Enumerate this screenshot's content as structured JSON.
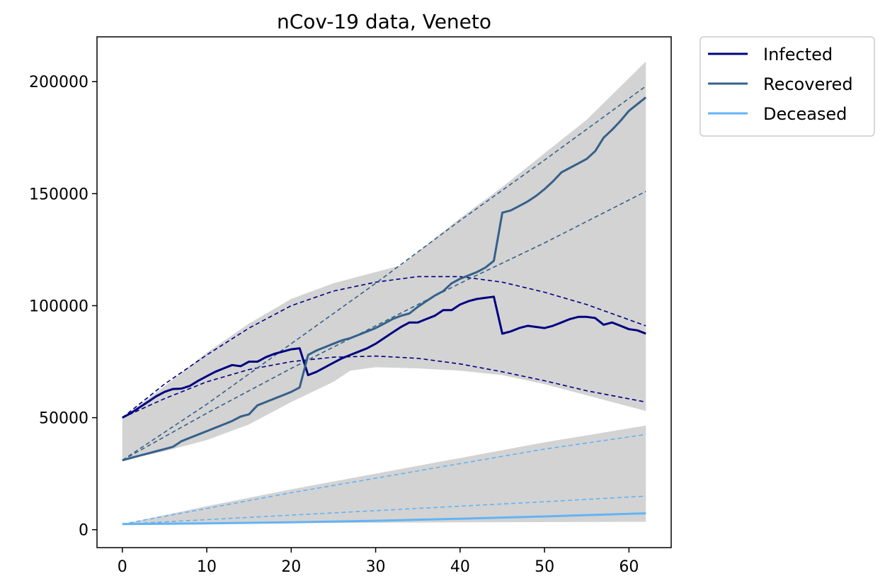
{
  "chart_data": {
    "type": "line",
    "title": "nCov-19 data, Veneto",
    "xlabel": "",
    "ylabel": "",
    "xlim": [
      -3,
      65
    ],
    "ylim": [
      -8000,
      220000
    ],
    "xticks": [
      0,
      10,
      20,
      30,
      40,
      50,
      60
    ],
    "yticks": [
      0,
      50000,
      100000,
      150000,
      200000
    ],
    "grid": false,
    "legend_position": "outside-top-right",
    "series": [
      {
        "name": "Infected",
        "color": "#000080",
        "style": "solid",
        "points": [
          [
            0,
            50000
          ],
          [
            1,
            52000
          ],
          [
            2,
            54500
          ],
          [
            3,
            57000
          ],
          [
            4,
            59500
          ],
          [
            5,
            61500
          ],
          [
            6,
            62800
          ],
          [
            7,
            63000
          ],
          [
            8,
            64200
          ],
          [
            9,
            66500
          ],
          [
            10,
            68500
          ],
          [
            11,
            70500
          ],
          [
            12,
            72000
          ],
          [
            13,
            73500
          ],
          [
            14,
            73000
          ],
          [
            15,
            75000
          ],
          [
            16,
            75000
          ],
          [
            17,
            77000
          ],
          [
            18,
            78500
          ],
          [
            19,
            79500
          ],
          [
            20,
            80500
          ],
          [
            21,
            81000
          ],
          [
            22,
            69000
          ],
          [
            23,
            70500
          ],
          [
            24,
            72500
          ],
          [
            25,
            74500
          ],
          [
            26,
            76500
          ],
          [
            27,
            78000
          ],
          [
            28,
            79500
          ],
          [
            29,
            81000
          ],
          [
            30,
            83000
          ],
          [
            31,
            85500
          ],
          [
            32,
            88000
          ],
          [
            33,
            90500
          ],
          [
            34,
            92500
          ],
          [
            35,
            92500
          ],
          [
            36,
            94000
          ],
          [
            37,
            95500
          ],
          [
            38,
            98000
          ],
          [
            39,
            98000
          ],
          [
            40,
            100500
          ],
          [
            41,
            102000
          ],
          [
            42,
            103000
          ],
          [
            43,
            103500
          ],
          [
            44,
            104000
          ],
          [
            45,
            87500
          ],
          [
            46,
            88500
          ],
          [
            47,
            90000
          ],
          [
            48,
            91000
          ],
          [
            49,
            90500
          ],
          [
            50,
            90000
          ],
          [
            51,
            91000
          ],
          [
            52,
            92500
          ],
          [
            53,
            94000
          ],
          [
            54,
            95000
          ],
          [
            55,
            95000
          ],
          [
            56,
            94500
          ],
          [
            57,
            91500
          ],
          [
            58,
            92500
          ],
          [
            59,
            91000
          ],
          [
            60,
            89500
          ],
          [
            61,
            89000
          ],
          [
            62,
            87500
          ]
        ]
      },
      {
        "name": "Recovered",
        "color": "#35608a",
        "style": "solid",
        "points": [
          [
            0,
            31000
          ],
          [
            1,
            32000
          ],
          [
            2,
            33000
          ],
          [
            3,
            34000
          ],
          [
            4,
            35000
          ],
          [
            5,
            36000
          ],
          [
            6,
            37000
          ],
          [
            7,
            39500
          ],
          [
            8,
            41000
          ],
          [
            9,
            42500
          ],
          [
            10,
            44000
          ],
          [
            11,
            45500
          ],
          [
            12,
            47000
          ],
          [
            13,
            48500
          ],
          [
            14,
            50500
          ],
          [
            15,
            51500
          ],
          [
            16,
            55500
          ],
          [
            17,
            57000
          ],
          [
            18,
            58500
          ],
          [
            19,
            60000
          ],
          [
            20,
            61500
          ],
          [
            21,
            63500
          ],
          [
            22,
            78000
          ],
          [
            23,
            80000
          ],
          [
            24,
            81500
          ],
          [
            25,
            83000
          ],
          [
            26,
            84500
          ],
          [
            27,
            85500
          ],
          [
            28,
            87000
          ],
          [
            29,
            88500
          ],
          [
            30,
            90000
          ],
          [
            31,
            92000
          ],
          [
            32,
            94000
          ],
          [
            33,
            95500
          ],
          [
            34,
            96500
          ],
          [
            35,
            99500
          ],
          [
            36,
            102000
          ],
          [
            37,
            104500
          ],
          [
            38,
            106500
          ],
          [
            39,
            110000
          ],
          [
            40,
            112000
          ],
          [
            41,
            113500
          ],
          [
            42,
            115000
          ],
          [
            43,
            117000
          ],
          [
            44,
            120000
          ],
          [
            45,
            141500
          ],
          [
            46,
            142500
          ],
          [
            47,
            144500
          ],
          [
            48,
            146500
          ],
          [
            49,
            149000
          ],
          [
            50,
            152000
          ],
          [
            51,
            155500
          ],
          [
            52,
            159500
          ],
          [
            53,
            161500
          ],
          [
            54,
            163500
          ],
          [
            55,
            165500
          ],
          [
            56,
            169000
          ],
          [
            57,
            175000
          ],
          [
            58,
            178500
          ],
          [
            59,
            182500
          ],
          [
            60,
            187000
          ],
          [
            61,
            190000
          ],
          [
            62,
            193000
          ]
        ]
      },
      {
        "name": "Deceased",
        "color": "#63b3f5",
        "style": "solid",
        "points": [
          [
            0,
            2500
          ],
          [
            10,
            2800
          ],
          [
            20,
            3300
          ],
          [
            30,
            4000
          ],
          [
            40,
            4900
          ],
          [
            50,
            5900
          ],
          [
            55,
            6500
          ],
          [
            62,
            7300
          ]
        ]
      },
      {
        "name": "",
        "color": "#000080",
        "style": "dashed",
        "points": [
          [
            0,
            50000
          ],
          [
            5,
            65000
          ],
          [
            10,
            78000
          ],
          [
            15,
            90000
          ],
          [
            20,
            100000
          ],
          [
            25,
            106500
          ],
          [
            30,
            110500
          ],
          [
            35,
            113000
          ],
          [
            40,
            113000
          ],
          [
            45,
            110500
          ],
          [
            50,
            106000
          ],
          [
            55,
            100500
          ],
          [
            62,
            91000
          ]
        ]
      },
      {
        "name": "",
        "color": "#000080",
        "style": "dashed",
        "points": [
          [
            0,
            50000
          ],
          [
            5,
            58500
          ],
          [
            10,
            66000
          ],
          [
            15,
            71500
          ],
          [
            20,
            75000
          ],
          [
            25,
            77000
          ],
          [
            30,
            77500
          ],
          [
            35,
            76500
          ],
          [
            40,
            74000
          ],
          [
            45,
            70500
          ],
          [
            50,
            66500
          ],
          [
            55,
            62000
          ],
          [
            62,
            57000
          ]
        ]
      },
      {
        "name": "",
        "color": "#35608a",
        "style": "dashed",
        "points": [
          [
            0,
            31000
          ],
          [
            10,
            56000
          ],
          [
            20,
            83000
          ],
          [
            30,
            110000
          ],
          [
            40,
            138000
          ],
          [
            50,
            165000
          ],
          [
            62,
            198000
          ]
        ]
      },
      {
        "name": "",
        "color": "#35608a",
        "style": "dashed",
        "points": [
          [
            0,
            31000
          ],
          [
            10,
            52000
          ],
          [
            20,
            72000
          ],
          [
            30,
            91000
          ],
          [
            40,
            110000
          ],
          [
            50,
            128000
          ],
          [
            62,
            151000
          ]
        ]
      },
      {
        "name": "",
        "color": "#63b3f5",
        "style": "dashed",
        "points": [
          [
            0,
            2500
          ],
          [
            10,
            9500
          ],
          [
            20,
            16500
          ],
          [
            30,
            23000
          ],
          [
            40,
            29500
          ],
          [
            50,
            36000
          ],
          [
            62,
            42500
          ]
        ]
      },
      {
        "name": "",
        "color": "#63b3f5",
        "style": "dashed",
        "points": [
          [
            0,
            2500
          ],
          [
            10,
            4500
          ],
          [
            20,
            6500
          ],
          [
            30,
            8500
          ],
          [
            40,
            10500
          ],
          [
            50,
            12500
          ],
          [
            62,
            15000
          ]
        ]
      }
    ],
    "bands": [
      {
        "color": "#d3d3d3",
        "upper": [
          [
            0,
            50000
          ],
          [
            5,
            64000
          ],
          [
            10,
            79000
          ],
          [
            15,
            92000
          ],
          [
            20,
            103000
          ],
          [
            25,
            110000
          ],
          [
            30,
            115000
          ],
          [
            33,
            118000
          ],
          [
            35,
            124000
          ],
          [
            40,
            139000
          ],
          [
            45,
            153000
          ],
          [
            50,
            168000
          ],
          [
            55,
            183000
          ],
          [
            62,
            209000
          ]
        ],
        "lower": [
          [
            62,
            53000
          ],
          [
            55,
            60000
          ],
          [
            50,
            65000
          ],
          [
            45,
            69000
          ],
          [
            40,
            71000
          ],
          [
            35,
            72000
          ],
          [
            30,
            72500
          ],
          [
            27,
            71000
          ],
          [
            25,
            66000
          ],
          [
            20,
            57000
          ],
          [
            15,
            47000
          ],
          [
            10,
            40000
          ],
          [
            5,
            35000
          ],
          [
            0,
            31000
          ]
        ]
      },
      {
        "color": "#d3d3d3",
        "upper": [
          [
            0,
            2500
          ],
          [
            10,
            10500
          ],
          [
            20,
            18000
          ],
          [
            30,
            25000
          ],
          [
            40,
            32000
          ],
          [
            50,
            39000
          ],
          [
            62,
            46500
          ]
        ],
        "lower": [
          [
            62,
            3500
          ],
          [
            50,
            3400
          ],
          [
            40,
            3300
          ],
          [
            30,
            3100
          ],
          [
            20,
            2900
          ],
          [
            10,
            2700
          ],
          [
            0,
            2500
          ]
        ]
      }
    ]
  }
}
